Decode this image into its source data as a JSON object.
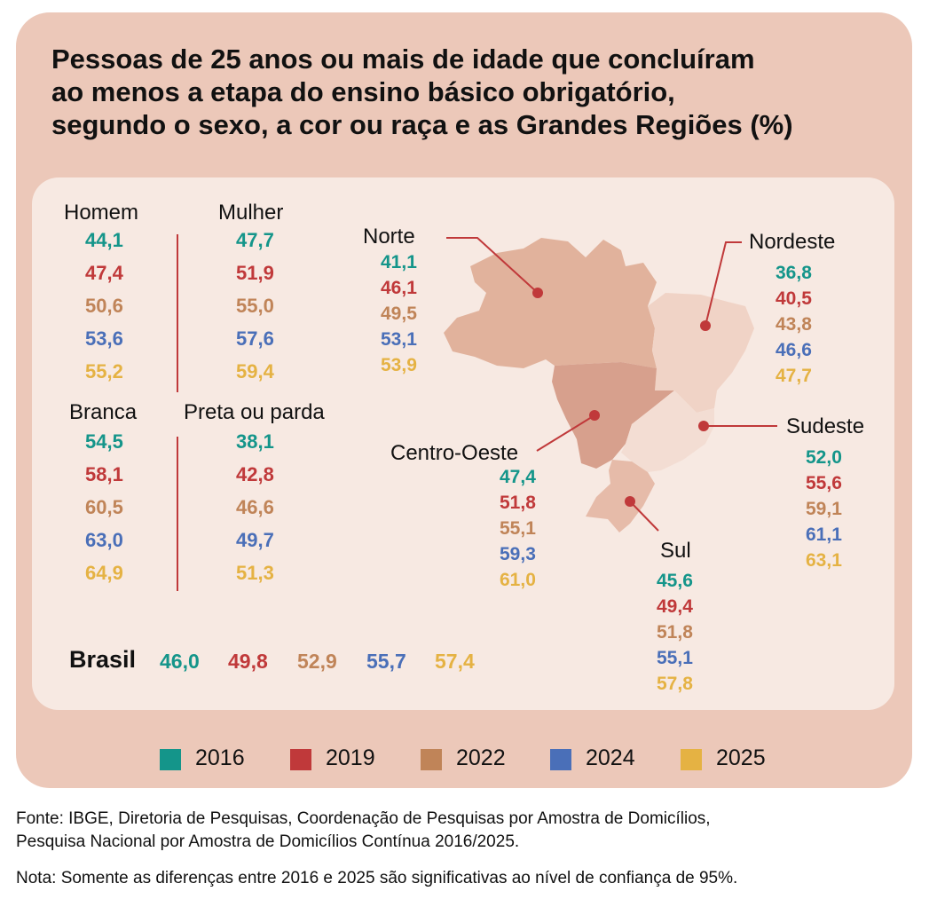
{
  "title_lines": [
    "Pessoas de 25 anos ou mais de idade que concluíram",
    "ao menos a etapa do ensino básico obrigatório,",
    "segundo o sexo, a cor ou raça e as Grandes Regiões (%)"
  ],
  "colors": {
    "y2016": "#14958a",
    "y2019": "#c0393a",
    "y2022": "#c08458",
    "y2024": "#4a6fb8",
    "y2025": "#e5b243",
    "card_bg": "#ecc8b9",
    "inner_bg": "#f7e9e2"
  },
  "groups": {
    "homem": {
      "label": "Homem",
      "values": [
        "44,1",
        "47,4",
        "50,6",
        "53,6",
        "55,2"
      ]
    },
    "mulher": {
      "label": "Mulher",
      "values": [
        "47,7",
        "51,9",
        "55,0",
        "57,6",
        "59,4"
      ]
    },
    "branca": {
      "label": "Branca",
      "values": [
        "54,5",
        "58,1",
        "60,5",
        "63,0",
        "64,9"
      ]
    },
    "preta": {
      "label": "Preta ou parda",
      "values": [
        "38,1",
        "42,8",
        "46,6",
        "49,7",
        "51,3"
      ]
    }
  },
  "regions": {
    "norte": {
      "label": "Norte",
      "values": [
        "41,1",
        "46,1",
        "49,5",
        "53,1",
        "53,9"
      ]
    },
    "nordeste": {
      "label": "Nordeste",
      "values": [
        "36,8",
        "40,5",
        "43,8",
        "46,6",
        "47,7"
      ]
    },
    "centro_oeste": {
      "label": "Centro-Oeste",
      "values": [
        "47,4",
        "51,8",
        "55,1",
        "59,3",
        "61,0"
      ]
    },
    "sudeste": {
      "label": "Sudeste",
      "values": [
        "52,0",
        "55,6",
        "59,1",
        "61,1",
        "63,1"
      ]
    },
    "sul": {
      "label": "Sul",
      "values": [
        "45,6",
        "49,4",
        "51,8",
        "55,1",
        "57,8"
      ]
    }
  },
  "brasil": {
    "label": "Brasil",
    "values": [
      "46,0",
      "49,8",
      "52,9",
      "55,7",
      "57,4"
    ]
  },
  "legend": [
    "2016",
    "2019",
    "2022",
    "2024",
    "2025"
  ],
  "footer": {
    "fonte_line1": "Fonte: IBGE, Diretoria de Pesquisas, Coordenação de Pesquisas por Amostra de Domicílios,",
    "fonte_line2": "Pesquisa Nacional por Amostra de Domicílios Contínua 2016/2025.",
    "nota": "Nota: Somente as diferenças entre 2016 e 2025 são significativas ao nível de confiança de 95%."
  }
}
